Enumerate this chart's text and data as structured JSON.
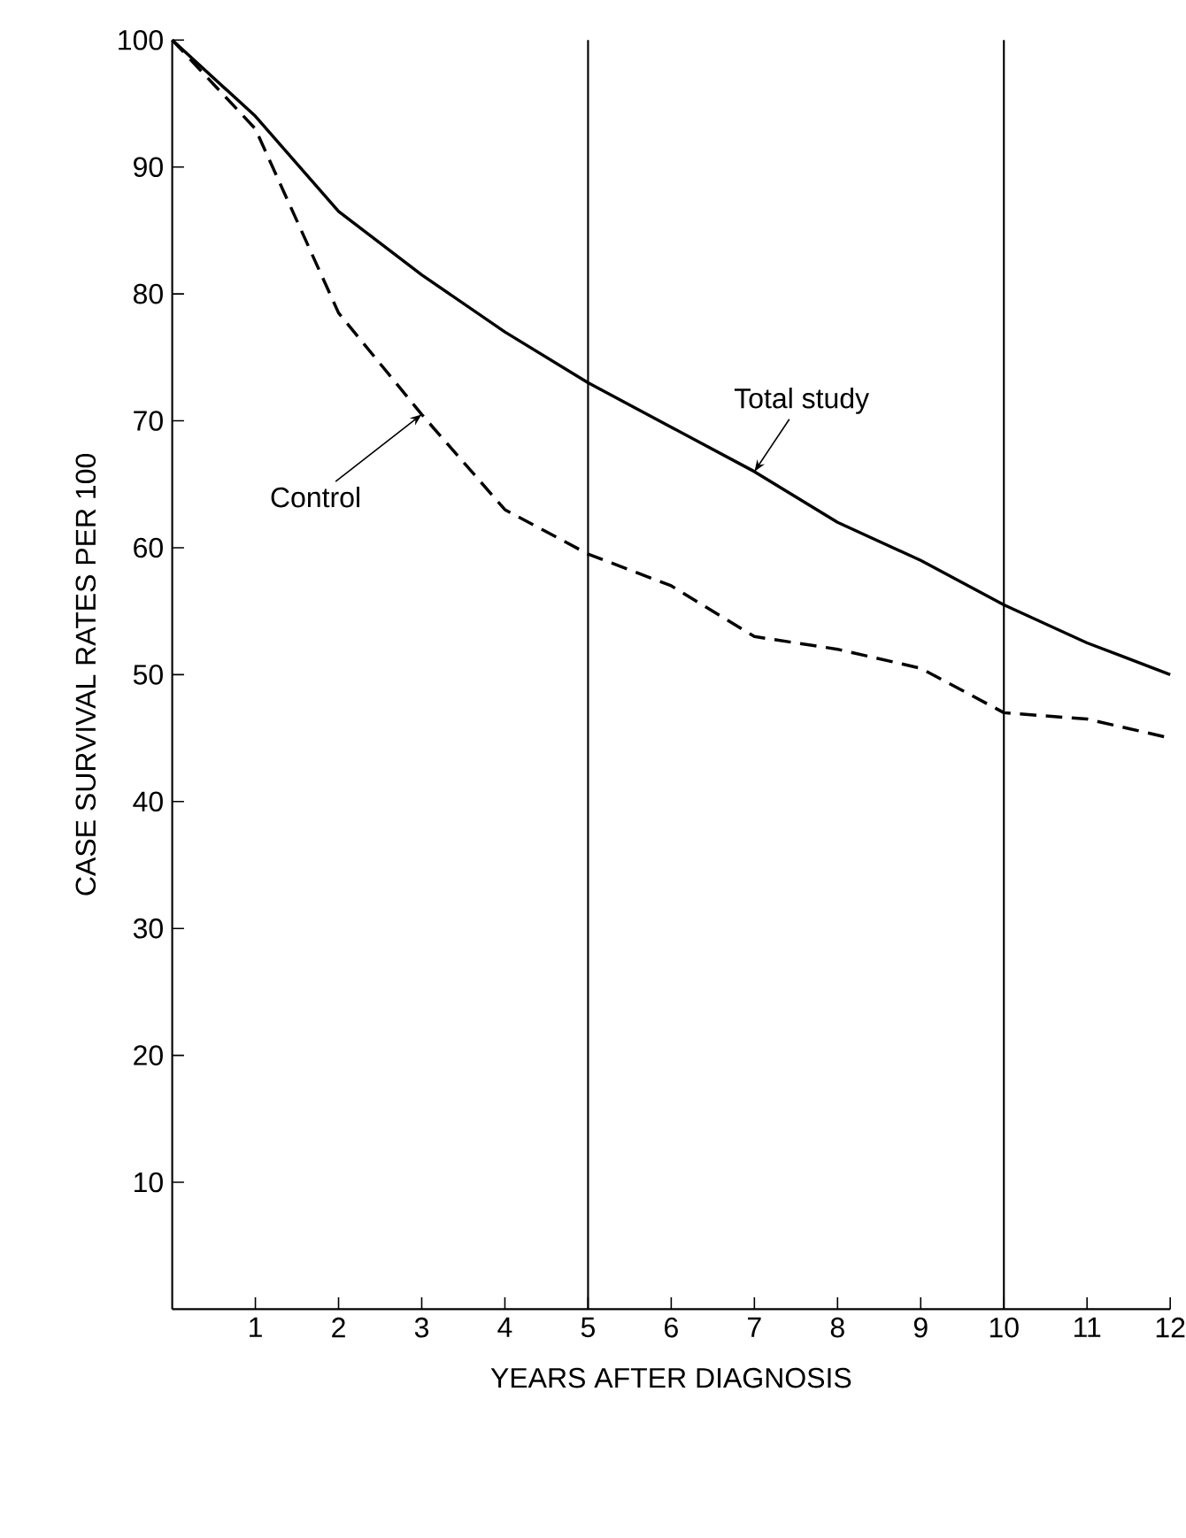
{
  "chart_data": {
    "type": "line",
    "xlabel": "YEARS AFTER DIAGNOSIS",
    "ylabel": "CASE SURVIVAL RATES PER 100",
    "x": [
      0,
      1,
      2,
      3,
      4,
      5,
      6,
      7,
      8,
      9,
      10,
      11,
      12
    ],
    "series": [
      {
        "color": "#000000",
        "line_style": "solid",
        "values": [
          100,
          94,
          86.5,
          81.5,
          77,
          73,
          69.5,
          66,
          62,
          59,
          55.5,
          52.5,
          50
        ]
      },
      {
        "color": "#000000",
        "line_style": "dashed",
        "values": [
          100,
          93,
          78.5,
          70.5,
          63,
          59.5,
          57,
          53,
          52,
          50.5,
          47,
          46.5,
          45
        ]
      }
    ],
    "xlim": [
      0,
      12
    ],
    "ylim": [
      0,
      100
    ],
    "xticks": [
      1,
      2,
      3,
      4,
      5,
      6,
      7,
      8,
      9,
      10,
      11,
      12
    ],
    "yticks": [
      10,
      20,
      30,
      40,
      50,
      60,
      70,
      80,
      90,
      100
    ],
    "ref_lines": [
      {
        "axis": "x",
        "value": 5,
        "color": "#000000"
      },
      {
        "axis": "x",
        "value": 10,
        "color": "#000000"
      }
    ],
    "annotations": [
      {
        "text": "Total study",
        "x": 7,
        "y": 66
      },
      {
        "text": "Control",
        "x": 3,
        "y": 70.5
      }
    ],
    "marker": "none",
    "grid": false
  }
}
